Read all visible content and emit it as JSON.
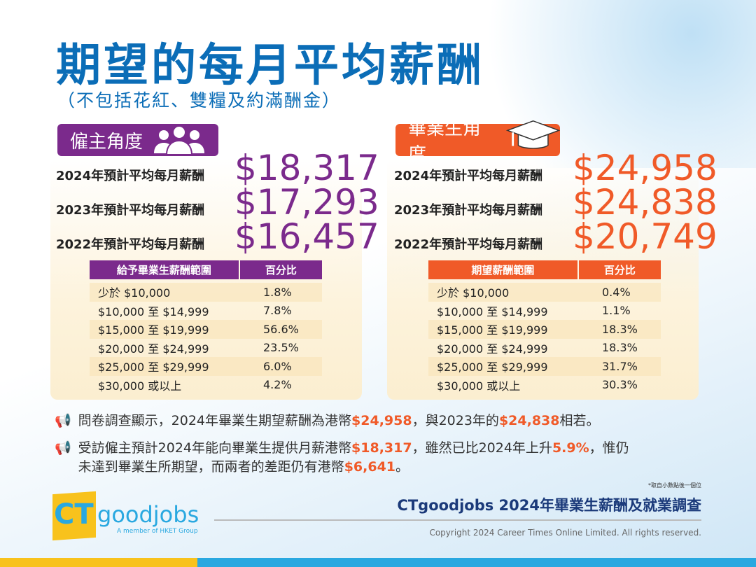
{
  "title": "期望的每月平均薪酬",
  "subtitle": "（不包括花紅、雙糧及約滿酬金）",
  "colors": {
    "purple": "#7b2a8c",
    "orange": "#f05a28",
    "blue": "#0b6db7"
  },
  "employer": {
    "badge": "僱主角度",
    "icon": "people-icon",
    "rows": [
      {
        "label": "2024年預計平均每月薪酬",
        "amount": "$18,317"
      },
      {
        "label": "2023年預計平均每月薪酬",
        "amount": "$17,293"
      },
      {
        "label": "2022年預計平均每月薪酬",
        "amount": "$16,457"
      }
    ],
    "table": {
      "headers": [
        "給予畢業生薪酬範圍",
        "百分比"
      ],
      "rows": [
        [
          "少於 $10,000",
          "1.8%"
        ],
        [
          "$10,000 至 $14,999",
          "7.8%"
        ],
        [
          "$15,000 至 $19,999",
          "56.6%"
        ],
        [
          "$20,000 至 $24,999",
          "23.5%"
        ],
        [
          "$25,000 至 $29,999",
          "6.0%"
        ],
        [
          "$30,000 或以上",
          "4.2%"
        ]
      ]
    }
  },
  "graduate": {
    "badge": "畢業生角度",
    "icon": "graduation-cap-icon",
    "rows": [
      {
        "label": "2024年預計平均每月薪酬",
        "amount": "$24,958"
      },
      {
        "label": "2023年預計平均每月薪酬",
        "amount": "$24,838"
      },
      {
        "label": "2022年預計平均每月薪酬",
        "amount": "$20,749"
      }
    ],
    "table": {
      "headers": [
        "期望薪酬範圍",
        "百分比"
      ],
      "rows": [
        [
          "少於 $10,000",
          "0.4%"
        ],
        [
          "$10,000 至 $14,999",
          "1.1%"
        ],
        [
          "$15,000 至 $19,999",
          "18.3%"
        ],
        [
          "$20,000 至 $24,999",
          "18.3%"
        ],
        [
          "$25,000 至 $29,999",
          "31.7%"
        ],
        [
          "$30,000 或以上",
          "30.3%"
        ]
      ]
    }
  },
  "bullets": [
    {
      "t1": "問卷調查顯示，2024年畢業生期望薪酬為港幣",
      "h1": "$24,958",
      "t2": "，與2023年的",
      "h2": "$24,838",
      "t3": "相若。"
    },
    {
      "t1": "受訪僱主預計2024年能向畢業生提供月薪港幣",
      "h1": "$18,317",
      "t2": "，雖然已比2024年上升",
      "h2": "5.9%",
      "t3": "，惟仍",
      "t4": "未達到畢業生所期望，而兩者的差距仍有港幣",
      "h3": "$6,641",
      "t5": "。"
    }
  ],
  "footer": {
    "note": "*取自小數點後一個位",
    "title": "CTgoodjobs 2024年畢業生薪酬及就業調查",
    "copyright": "Copyright 2024 Career Times Online Limited. All rights reserved.",
    "logo_ct": "CT",
    "logo_text": "goodjobs",
    "logo_tag": "A member of HKET Group"
  }
}
